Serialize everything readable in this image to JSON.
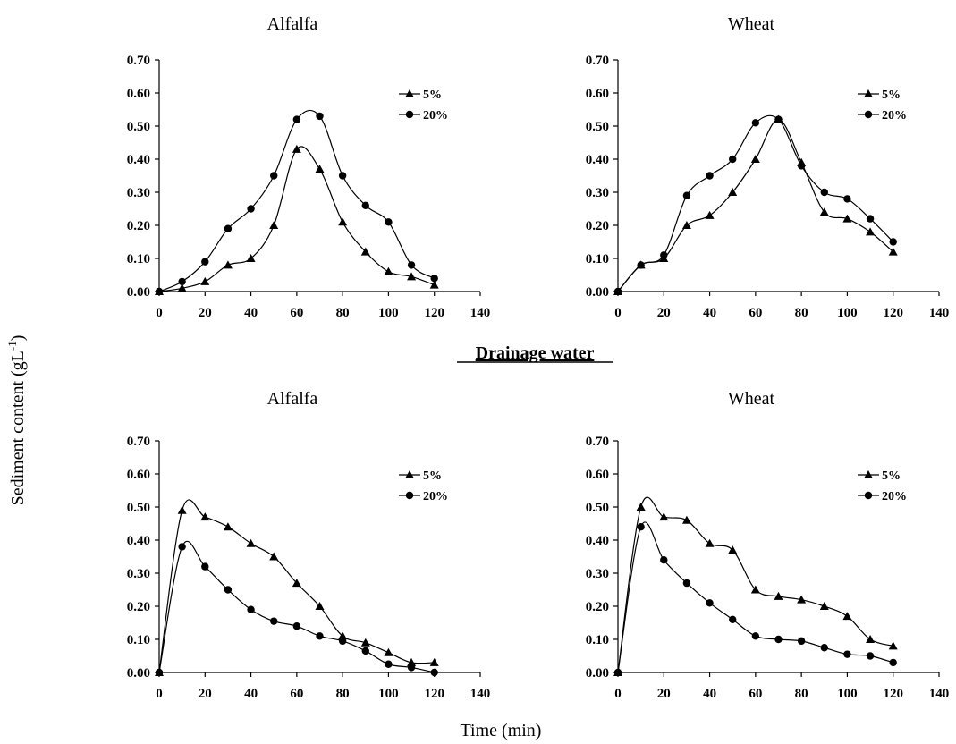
{
  "figure": {
    "ylabel": "Sediment content (gL",
    "ylabel_sup": "-1",
    "ylabel_close": ")",
    "xlabel": "Time (min)",
    "section_label": "Drainage water"
  },
  "chart_data": [
    {
      "type": "line",
      "title": "Alfalfa",
      "xlim": [
        0,
        140
      ],
      "ylim": [
        0,
        0.7
      ],
      "xticks": [
        "0",
        "20",
        "40",
        "60",
        "80",
        "100",
        "120",
        "140"
      ],
      "yticks": [
        "0.00",
        "0.10",
        "0.20",
        "0.30",
        "0.40",
        "0.50",
        "0.60",
        "0.70"
      ],
      "grid": false,
      "legend_position": "top-right",
      "series": [
        {
          "name": "5%",
          "marker": "triangle",
          "x": [
            0,
            10,
            20,
            30,
            40,
            50,
            60,
            70,
            80,
            90,
            100,
            110,
            120
          ],
          "values": [
            0.0,
            0.01,
            0.03,
            0.08,
            0.1,
            0.2,
            0.43,
            0.37,
            0.21,
            0.12,
            0.06,
            0.045,
            0.02
          ]
        },
        {
          "name": "20%",
          "marker": "circle",
          "x": [
            0,
            10,
            20,
            30,
            40,
            50,
            60,
            70,
            80,
            90,
            100,
            110,
            120
          ],
          "values": [
            0.0,
            0.03,
            0.09,
            0.19,
            0.25,
            0.35,
            0.52,
            0.53,
            0.35,
            0.26,
            0.21,
            0.08,
            0.04
          ]
        }
      ]
    },
    {
      "type": "line",
      "title": "Wheat",
      "xlim": [
        0,
        140
      ],
      "ylim": [
        0,
        0.7
      ],
      "xticks": [
        "0",
        "20",
        "40",
        "60",
        "80",
        "100",
        "120",
        "140"
      ],
      "yticks": [
        "0.00",
        "0.10",
        "0.20",
        "0.30",
        "0.40",
        "0.50",
        "0.60",
        "0.70"
      ],
      "grid": false,
      "legend_position": "top-right",
      "series": [
        {
          "name": "5%",
          "marker": "triangle",
          "x": [
            0,
            10,
            20,
            30,
            40,
            50,
            60,
            70,
            80,
            90,
            100,
            110,
            120
          ],
          "values": [
            0.0,
            0.08,
            0.1,
            0.2,
            0.23,
            0.3,
            0.4,
            0.52,
            0.39,
            0.24,
            0.22,
            0.18,
            0.12
          ]
        },
        {
          "name": "20%",
          "marker": "circle",
          "x": [
            0,
            10,
            20,
            30,
            40,
            50,
            60,
            70,
            80,
            90,
            100,
            110,
            120
          ],
          "values": [
            0.0,
            0.08,
            0.11,
            0.29,
            0.35,
            0.4,
            0.51,
            0.52,
            0.38,
            0.3,
            0.28,
            0.22,
            0.15
          ]
        }
      ]
    },
    {
      "type": "line",
      "title": "Alfalfa",
      "xlim": [
        0,
        140
      ],
      "ylim": [
        0,
        0.7
      ],
      "xticks": [
        "0",
        "20",
        "40",
        "60",
        "80",
        "100",
        "120",
        "140"
      ],
      "yticks": [
        "0.00",
        "0.10",
        "0.20",
        "0.30",
        "0.40",
        "0.50",
        "0.60",
        "0.70"
      ],
      "grid": false,
      "legend_position": "top-right",
      "series": [
        {
          "name": "5%",
          "marker": "triangle",
          "x": [
            0,
            10,
            20,
            30,
            40,
            50,
            60,
            70,
            80,
            90,
            100,
            110,
            120
          ],
          "values": [
            0.0,
            0.49,
            0.47,
            0.44,
            0.39,
            0.35,
            0.27,
            0.2,
            0.11,
            0.09,
            0.06,
            0.03,
            0.03
          ]
        },
        {
          "name": "20%",
          "marker": "circle",
          "x": [
            0,
            10,
            20,
            30,
            40,
            50,
            60,
            70,
            80,
            90,
            100,
            110,
            120
          ],
          "values": [
            0.0,
            0.38,
            0.32,
            0.25,
            0.19,
            0.155,
            0.14,
            0.11,
            0.095,
            0.065,
            0.025,
            0.015,
            0.0
          ]
        }
      ]
    },
    {
      "type": "line",
      "title": "Wheat",
      "xlim": [
        0,
        140
      ],
      "ylim": [
        0,
        0.7
      ],
      "xticks": [
        "0",
        "20",
        "40",
        "60",
        "80",
        "100",
        "120",
        "140"
      ],
      "yticks": [
        "0.00",
        "0.10",
        "0.20",
        "0.30",
        "0.40",
        "0.50",
        "0.60",
        "0.70"
      ],
      "grid": false,
      "legend_position": "top-right",
      "series": [
        {
          "name": "5%",
          "marker": "triangle",
          "x": [
            0,
            10,
            20,
            30,
            40,
            50,
            60,
            70,
            80,
            90,
            100,
            110,
            120
          ],
          "values": [
            0.0,
            0.5,
            0.47,
            0.46,
            0.39,
            0.37,
            0.25,
            0.23,
            0.22,
            0.2,
            0.17,
            0.1,
            0.08
          ]
        },
        {
          "name": "20%",
          "marker": "circle",
          "x": [
            0,
            10,
            20,
            30,
            40,
            50,
            60,
            70,
            80,
            90,
            100,
            110,
            120
          ],
          "values": [
            0.0,
            0.44,
            0.34,
            0.27,
            0.21,
            0.16,
            0.11,
            0.1,
            0.095,
            0.075,
            0.055,
            0.05,
            0.03
          ]
        }
      ]
    }
  ]
}
